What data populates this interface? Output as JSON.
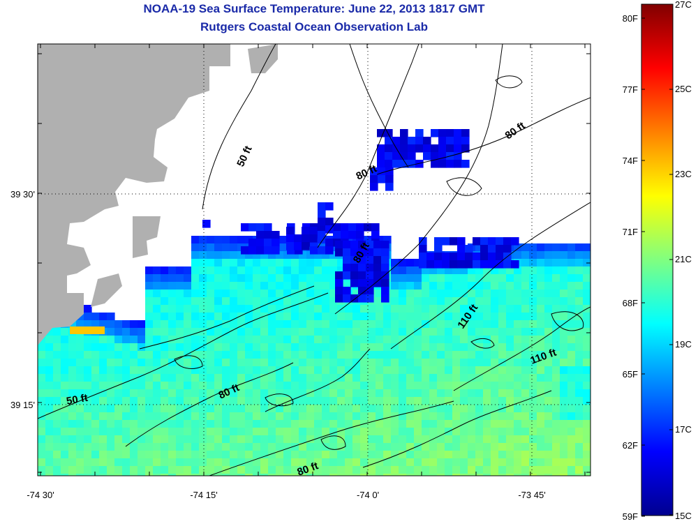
{
  "title": "NOAA-19 Sea Surface Temperature:  June 22, 2013 1817 GMT",
  "subtitle": "Rutgers Coastal Ocean Observation Lab",
  "axes": {
    "x_ticks": [
      "-74 30'",
      "-74 15'",
      "-74 0'",
      "-73 45'"
    ],
    "y_ticks": [
      "39 30'",
      "39 15'"
    ]
  },
  "colorbar": {
    "fahrenheit": [
      "80F",
      "77F",
      "74F",
      "71F",
      "68F",
      "65F",
      "62F",
      "59F"
    ],
    "celsius": [
      "27C",
      "25C",
      "23C",
      "21C",
      "19C",
      "17C",
      "15C"
    ],
    "colors": [
      "#00008f",
      "#0000ff",
      "#0080ff",
      "#00ffff",
      "#80ff80",
      "#ffff00",
      "#ff8000",
      "#ff0000",
      "#800000"
    ],
    "range_c": [
      15,
      27
    ]
  },
  "contour_labels": [
    {
      "text": "50 ft",
      "angle": -65
    },
    {
      "text": "80 ft",
      "angle": -35
    },
    {
      "text": "80 ft",
      "angle": -25
    },
    {
      "text": "80 ft",
      "angle": -60
    },
    {
      "text": "110 ft",
      "angle": -55
    },
    {
      "text": "110 ft",
      "angle": -20
    },
    {
      "text": "50 ft",
      "angle": -10
    },
    {
      "text": "80 ft",
      "angle": -25
    },
    {
      "text": "80 ft",
      "angle": -20
    }
  ],
  "colors": {
    "land": "#b0b0b0",
    "title": "#1a2aa8"
  }
}
